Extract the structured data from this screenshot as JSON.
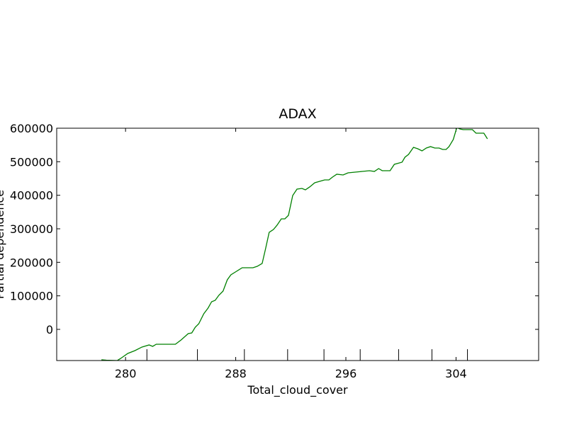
{
  "chart_data": {
    "type": "line",
    "title": "ADAX",
    "xlabel": "Total_cloud_cover",
    "ylabel": "Partial dependence",
    "x": [
      278.25,
      278.61,
      279.39,
      279.65,
      280.16,
      280.68,
      281.19,
      281.71,
      281.97,
      282.23,
      283.0,
      283.62,
      284.03,
      284.55,
      284.81,
      285.06,
      285.32,
      285.68,
      285.99,
      286.25,
      286.51,
      286.77,
      287.08,
      287.39,
      287.65,
      288.06,
      288.47,
      288.94,
      289.25,
      289.56,
      289.92,
      290.17,
      290.43,
      290.74,
      291.0,
      291.31,
      291.57,
      291.83,
      292.14,
      292.45,
      292.81,
      293.06,
      293.37,
      293.74,
      294.1,
      294.46,
      294.77,
      295.03,
      295.34,
      295.8,
      296.16,
      296.68,
      297.19,
      297.71,
      298.07,
      298.38,
      298.64,
      299.21,
      299.52,
      300.08,
      300.29,
      300.55,
      300.91,
      301.22,
      301.53,
      301.84,
      302.15,
      302.46,
      302.77,
      303.03,
      303.28,
      303.49,
      303.8,
      304.06,
      304.27,
      304.52,
      305.19,
      305.45,
      306.02,
      306.28
    ],
    "series": [
      {
        "color": "#008000",
        "values": [
          -90800,
          -92000,
          -93000,
          -86600,
          -71800,
          -63400,
          -52800,
          -46500,
          -50700,
          -44400,
          -44400,
          -44400,
          -31700,
          -12700,
          -10600,
          6300,
          16900,
          46500,
          63400,
          82400,
          86600,
          101400,
          114100,
          147900,
          162700,
          173200,
          183800,
          183800,
          183800,
          188000,
          196500,
          240800,
          289400,
          297900,
          310600,
          329600,
          329600,
          340100,
          399300,
          418300,
          420400,
          416200,
          424700,
          437300,
          441600,
          445800,
          445800,
          454200,
          462700,
          460600,
          466900,
          469000,
          471100,
          473300,
          471100,
          479600,
          473300,
          473300,
          492300,
          498600,
          513400,
          521800,
          542900,
          538700,
          532400,
          540800,
          545100,
          540800,
          540800,
          536600,
          536600,
          545100,
          566200,
          602100,
          597900,
          595800,
          595800,
          585200,
          585200,
          568300
        ]
      }
    ],
    "deciles": [
      281.55,
      285.22,
      288.63,
      291.77,
      294.41,
      297.04,
      299.83,
      302.25,
      304.83
    ],
    "xlim": [
      275,
      310
    ],
    "ylim": [
      -93000,
      600000
    ],
    "xticks": [
      280,
      288,
      296,
      304
    ],
    "yticks": [
      0,
      100000,
      200000,
      300000,
      400000,
      500000,
      600000
    ]
  }
}
